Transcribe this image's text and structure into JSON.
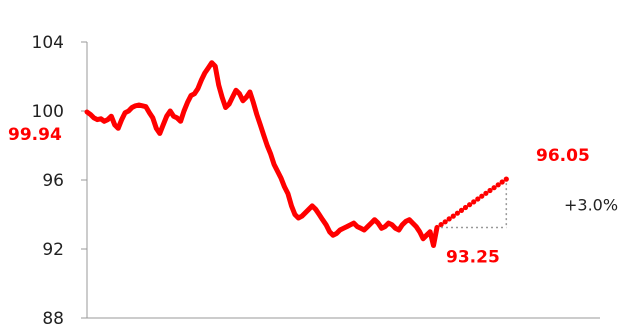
{
  "colors": {
    "series": "#ff0000",
    "axis": "#999999",
    "bracket": "#999999",
    "text": "#222222"
  },
  "chart_data": {
    "type": "line",
    "title": "",
    "xlabel": "",
    "ylabel": "",
    "ylim": [
      88,
      104
    ],
    "yticks": [
      88,
      92,
      96,
      100,
      104
    ],
    "ytick_labels": [
      "88",
      "92",
      "96",
      "100",
      "104"
    ],
    "grid": false,
    "legend": "none",
    "series": [
      {
        "style": "solid",
        "values": [
          99.94,
          99.8,
          99.6,
          99.5,
          99.55,
          99.4,
          99.5,
          99.7,
          99.2,
          99.0,
          99.5,
          99.9,
          100.0,
          100.2,
          100.3,
          100.35,
          100.3,
          100.25,
          99.9,
          99.6,
          99.0,
          98.7,
          99.2,
          99.7,
          100.0,
          99.7,
          99.6,
          99.4,
          100.0,
          100.5,
          100.9,
          101.0,
          101.3,
          101.8,
          102.2,
          102.5,
          102.8,
          102.6,
          101.5,
          100.8,
          100.2,
          100.4,
          100.8,
          101.2,
          101.0,
          100.6,
          100.8,
          101.1,
          100.5,
          99.8,
          99.2,
          98.6,
          98.0,
          97.5,
          96.9,
          96.5,
          96.1,
          95.6,
          95.2,
          94.5,
          94.0,
          93.8,
          93.9,
          94.1,
          94.3,
          94.5,
          94.3,
          94.0,
          93.7,
          93.4,
          93.0,
          92.8,
          92.9,
          93.1,
          93.2,
          93.3,
          93.4,
          93.5,
          93.3,
          93.2,
          93.1,
          93.3,
          93.5,
          93.7,
          93.5,
          93.2,
          93.3,
          93.5,
          93.4,
          93.2,
          93.1,
          93.4,
          93.6,
          93.7,
          93.5,
          93.3,
          93.0,
          92.6,
          92.8,
          93.0,
          92.2,
          93.25
        ]
      },
      {
        "style": "dotted",
        "x_index": [
          101,
          121
        ],
        "values": [
          93.25,
          96.05
        ]
      }
    ],
    "annotations": {
      "start_value": "99.94",
      "current_value": "93.25",
      "projected_value": "96.05",
      "change": "+3.0%"
    }
  }
}
